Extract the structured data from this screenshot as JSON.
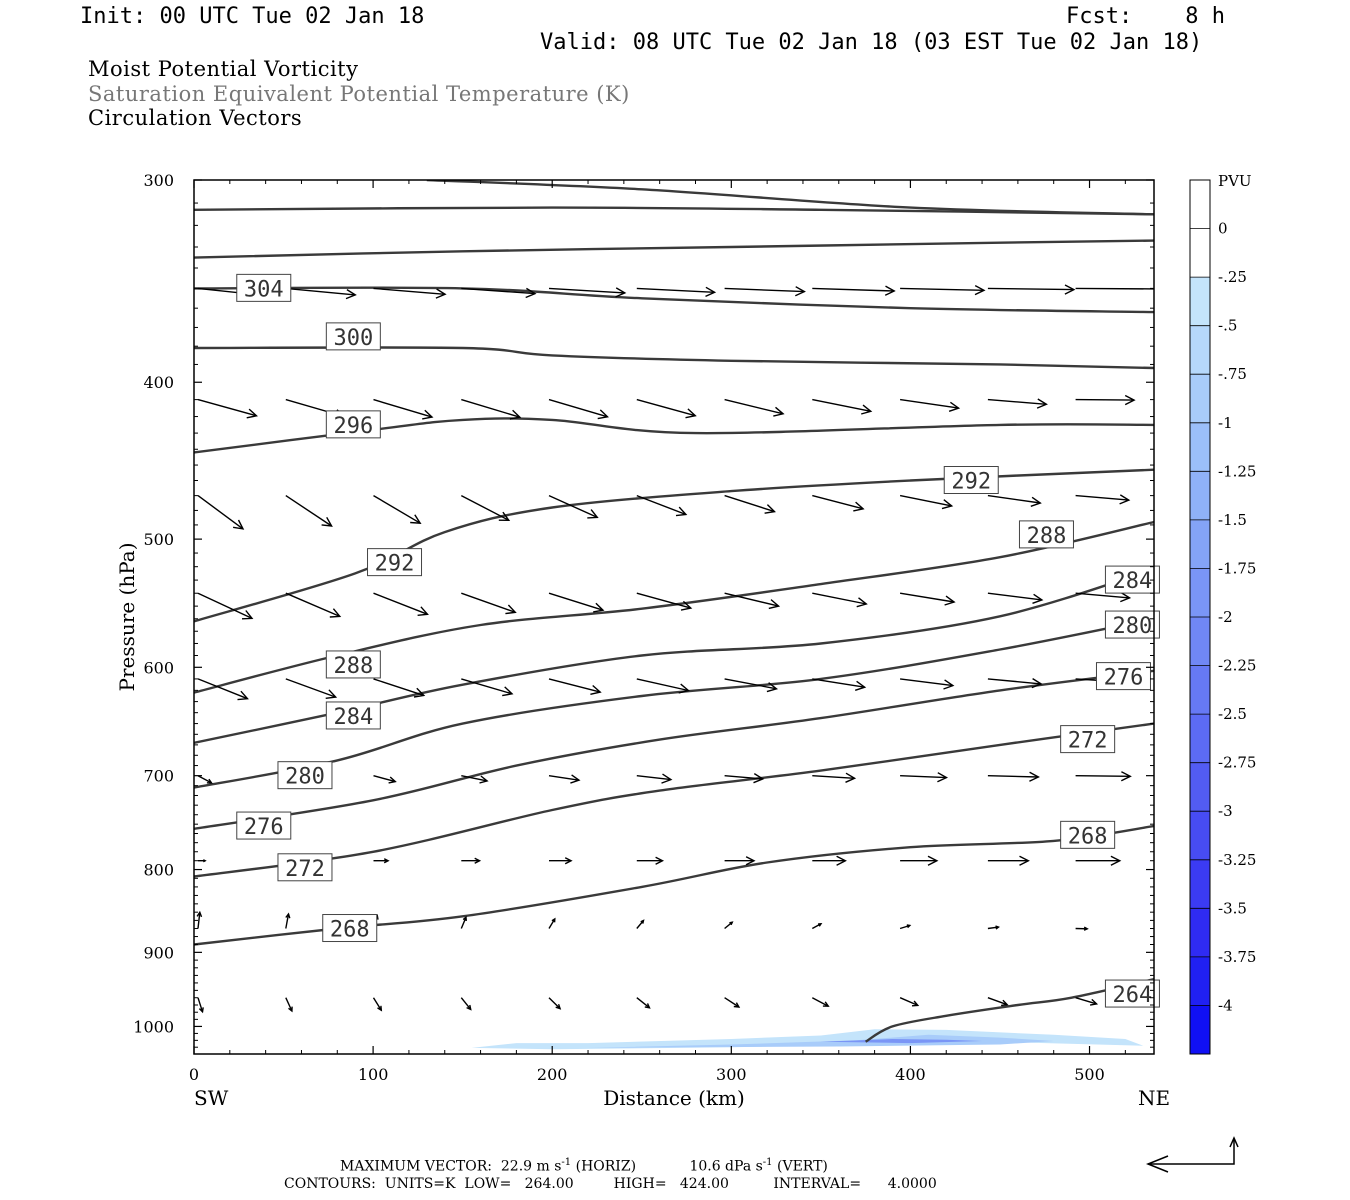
{
  "header": {
    "init": "Init: 00 UTC Tue 02 Jan 18",
    "fcst": "Fcst:    8 h",
    "valid": "Valid: 08 UTC Tue 02 Jan 18 (03 EST Tue 02 Jan 18)",
    "fields": [
      "Moist Potential Vorticity",
      "Saturation Equivalent Potential Temperature (K)",
      "Circulation Vectors"
    ]
  },
  "footer": {
    "max_vector_prefix": "MAXIMUM VECTOR:  22.9 m s",
    "max_vector_horiz": " (HORIZ)",
    "max_vector_vert_prefix": "10.6 dPa s",
    "max_vector_vert": " (VERT)",
    "exponent": "-1",
    "contours": "CONTOURS:  UNITS=K  LOW=   264.00         HIGH=   424.00          INTERVAL=      4.0000"
  },
  "colorbar": {
    "unit": "PVU",
    "labels": [
      "0",
      "-.25",
      "-.5",
      "-.75",
      "-1",
      "-1.25",
      "-1.5",
      "-1.75",
      "-2",
      "-2.25",
      "-2.5",
      "-2.75",
      "-3",
      "-3.25",
      "-3.5",
      "-3.75",
      "-4"
    ],
    "colors": [
      "#ffffff",
      "#ffffff",
      "#c4e4fb",
      "#b6d8fb",
      "#a8ccfa",
      "#9bbff9",
      "#8fb1f8",
      "#84a3f7",
      "#7a95f6",
      "#7087f5",
      "#6679f4",
      "#5c6bf4",
      "#525cf3",
      "#474cf3",
      "#3b3bf3",
      "#2f2bf3",
      "#2020f3",
      "#1010f4"
    ]
  },
  "chart_data": {
    "type": "contour",
    "x_unit": "km",
    "y_unit": "hPa",
    "xlabel": "Distance (km)",
    "ylabel": "Pressure (hPa)",
    "xlim": [
      0,
      536
    ],
    "ylim": [
      1040,
      300
    ],
    "y_log": true,
    "xticks": [
      0,
      100,
      200,
      300,
      400,
      500
    ],
    "yticks": [
      300,
      400,
      500,
      600,
      700,
      800,
      900,
      1000
    ],
    "endpoint_left": "SW",
    "endpoint_right": "NE",
    "isentropes": [
      {
        "label": "304",
        "label_at": [
          25,
          350
        ],
        "points": [
          [
            0,
            335
          ],
          [
            150,
            332
          ],
          [
            300,
            330
          ],
          [
            450,
            328
          ],
          [
            536,
            327
          ]
        ]
      },
      {
        "label": "",
        "label_at": null,
        "points": [
          [
            130,
            300
          ],
          [
            250,
            304
          ],
          [
            400,
            312
          ],
          [
            536,
            315
          ]
        ]
      },
      {
        "label": "",
        "label_at": null,
        "points": [
          [
            0,
            313
          ],
          [
            200,
            312
          ],
          [
            350,
            313
          ],
          [
            536,
            315
          ]
        ]
      },
      {
        "label": "",
        "label_at": null,
        "points": [
          [
            0,
            350
          ],
          [
            150,
            350
          ],
          [
            250,
            355
          ],
          [
            400,
            360
          ],
          [
            536,
            362
          ]
        ]
      },
      {
        "label": "300",
        "label_at": [
          75,
          375
        ],
        "points": [
          [
            0,
            381
          ],
          [
            150,
            381
          ],
          [
            200,
            385
          ],
          [
            300,
            388
          ],
          [
            450,
            390
          ],
          [
            536,
            392
          ]
        ]
      },
      {
        "label": "296",
        "label_at": [
          75,
          425
        ],
        "points": [
          [
            0,
            442
          ],
          [
            100,
            428
          ],
          [
            150,
            422
          ],
          [
            200,
            422
          ],
          [
            280,
            430
          ],
          [
            450,
            425
          ],
          [
            536,
            425
          ]
        ]
      },
      {
        "label": "292",
        "label_at": [
          98,
          517
        ],
        "points": [
          [
            0,
            562
          ],
          [
            90,
            525
          ],
          [
            140,
            495
          ],
          [
            200,
            478
          ],
          [
            300,
            467
          ],
          [
            400,
            460
          ],
          [
            536,
            453
          ]
        ]
      },
      {
        "label": "292",
        "label_at": [
          420,
          460
        ],
        "points": []
      },
      {
        "label": "288",
        "label_at": [
          75,
          598
        ],
        "points": [
          [
            0,
            622
          ],
          [
            80,
            590
          ],
          [
            160,
            565
          ],
          [
            250,
            552
          ],
          [
            350,
            533
          ],
          [
            450,
            513
          ],
          [
            536,
            488
          ]
        ]
      },
      {
        "label": "288",
        "label_at": [
          462,
          497
        ],
        "points": []
      },
      {
        "label": "284",
        "label_at": [
          75,
          643
        ],
        "points": [
          [
            0,
            668
          ],
          [
            80,
            640
          ],
          [
            150,
            615
          ],
          [
            250,
            590
          ],
          [
            350,
            580
          ],
          [
            450,
            558
          ],
          [
            536,
            522
          ]
        ]
      },
      {
        "label": "284",
        "label_at": [
          510,
          530
        ],
        "points": []
      },
      {
        "label": "280",
        "label_at": [
          48,
          700
        ],
        "points": [
          [
            0,
            712
          ],
          [
            80,
            685
          ],
          [
            150,
            650
          ],
          [
            250,
            625
          ],
          [
            350,
            610
          ],
          [
            450,
            585
          ],
          [
            536,
            560
          ]
        ]
      },
      {
        "label": "280",
        "label_at": [
          510,
          565
        ],
        "points": []
      },
      {
        "label": "276",
        "label_at": [
          25,
          752
        ],
        "points": [
          [
            0,
            755
          ],
          [
            100,
            725
          ],
          [
            180,
            690
          ],
          [
            260,
            665
          ],
          [
            350,
            645
          ],
          [
            450,
            620
          ],
          [
            536,
            603
          ]
        ]
      },
      {
        "label": "276",
        "label_at": [
          505,
          608
        ],
        "points": []
      },
      {
        "label": "272",
        "label_at": [
          48,
          798
        ],
        "points": [
          [
            0,
            808
          ],
          [
            100,
            780
          ],
          [
            200,
            735
          ],
          [
            260,
            715
          ],
          [
            350,
            695
          ],
          [
            450,
            670
          ],
          [
            536,
            650
          ]
        ]
      },
      {
        "label": "272",
        "label_at": [
          485,
          665
        ],
        "points": []
      },
      {
        "label": "268",
        "label_at": [
          73,
          870
        ],
        "points": [
          [
            0,
            890
          ],
          [
            80,
            870
          ],
          [
            150,
            855
          ],
          [
            250,
            820
          ],
          [
            320,
            792
          ],
          [
            400,
            775
          ],
          [
            480,
            768
          ],
          [
            536,
            752
          ]
        ]
      },
      {
        "label": "268",
        "label_at": [
          485,
          762
        ],
        "points": []
      },
      {
        "label": "264",
        "label_at": [
          510,
          955
        ],
        "points": [
          [
            375,
            1022
          ],
          [
            390,
            1000
          ],
          [
            420,
            985
          ],
          [
            460,
            970
          ],
          [
            490,
            960
          ],
          [
            536,
            935
          ]
        ]
      }
    ],
    "vector_max_horiz": 22.9,
    "vector_max_vert": 10.6,
    "mpv_shading": [
      {
        "label": "-.25",
        "points": [
          [
            155,
            1031
          ],
          [
            180,
            1024
          ],
          [
            220,
            1024
          ],
          [
            300,
            1018
          ],
          [
            350,
            1013
          ],
          [
            380,
            1004
          ],
          [
            420,
            1005
          ],
          [
            480,
            1012
          ],
          [
            520,
            1018
          ],
          [
            530,
            1028
          ],
          [
            460,
            1023
          ],
          [
            380,
            1026
          ],
          [
            300,
            1030
          ],
          [
            200,
            1033
          ]
        ]
      },
      {
        "label": "-.75",
        "points": [
          [
            220,
            1031
          ],
          [
            300,
            1026
          ],
          [
            370,
            1020
          ],
          [
            410,
            1012
          ],
          [
            450,
            1016
          ],
          [
            480,
            1021
          ],
          [
            450,
            1026
          ],
          [
            360,
            1029
          ]
        ]
      },
      {
        "label": "-1.75",
        "points": [
          [
            350,
            1022
          ],
          [
            390,
            1018
          ],
          [
            420,
            1019
          ],
          [
            440,
            1021
          ],
          [
            400,
            1024
          ]
        ]
      }
    ]
  }
}
